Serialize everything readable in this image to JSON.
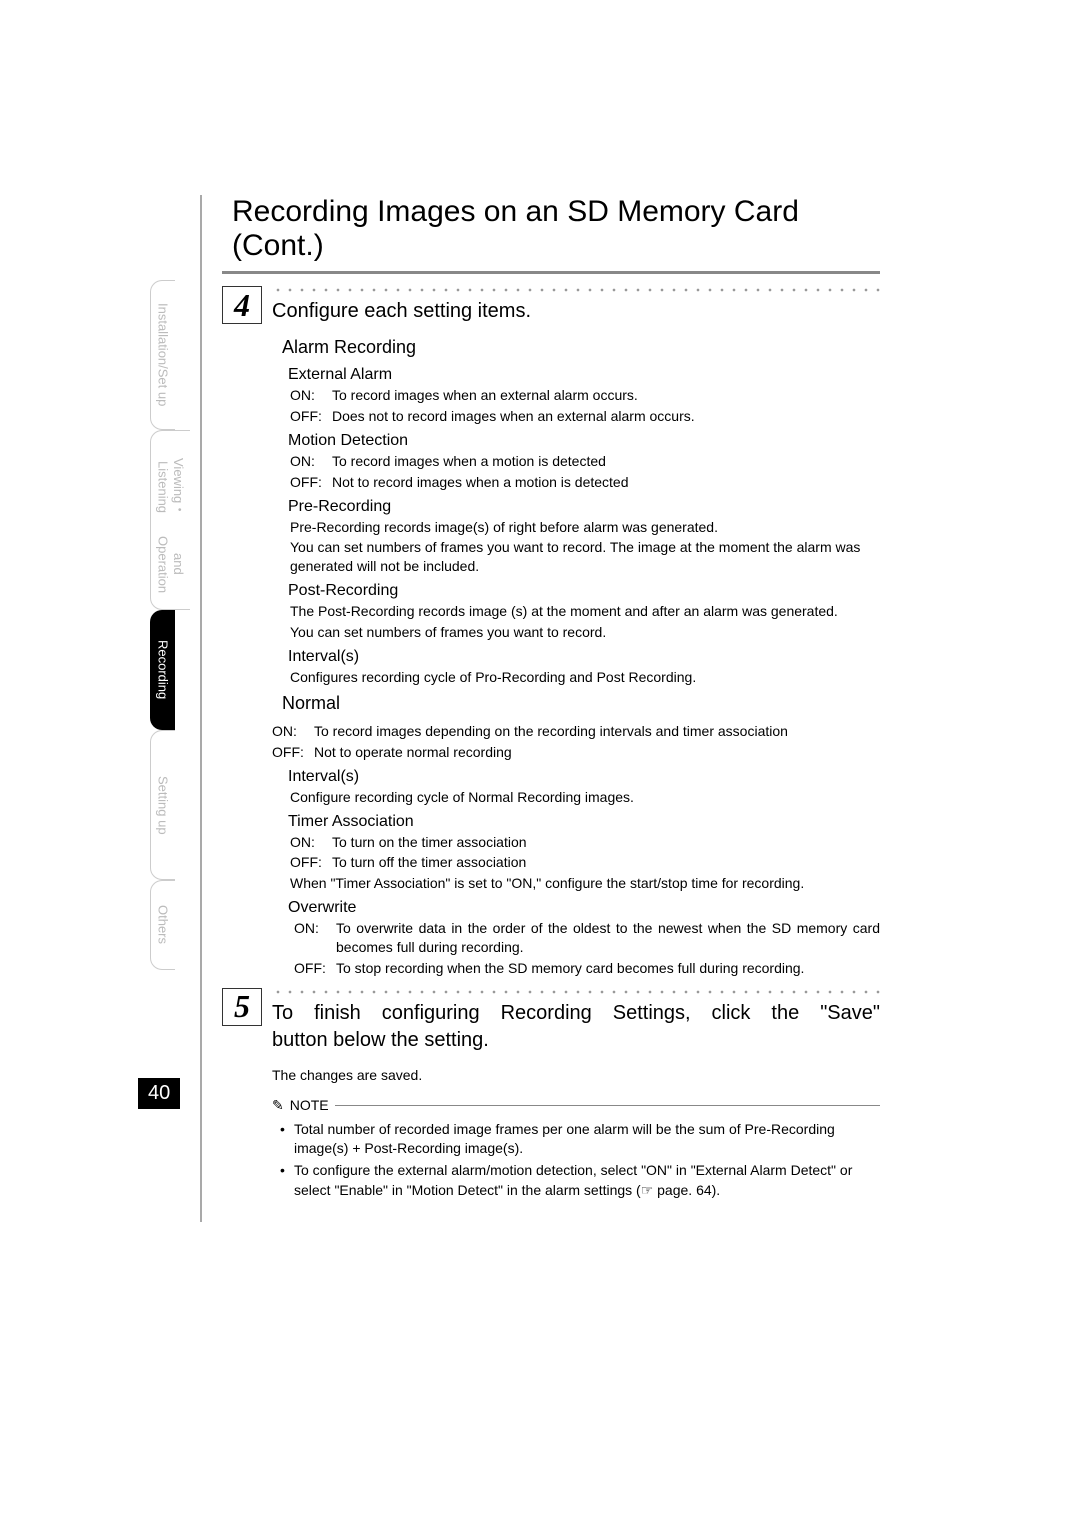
{
  "page_number": "40",
  "page_title": "Recording Images on an SD Memory Card (Cont.)",
  "sidebar": {
    "tab1": "Installation/Set up",
    "tab2_line1": "Viewing・Listening",
    "tab2_line2": "and Operation",
    "tab3": "Recording",
    "tab4": "Setting up",
    "tab5": "Others"
  },
  "step4": {
    "number": "4",
    "title": "Configure each setting items.",
    "alarm_recording": {
      "heading": "Alarm Recording",
      "external_alarm": {
        "label": "External Alarm",
        "on_label": "ON:",
        "on_text": "To record images when an external alarm occurs.",
        "off_label": "OFF:",
        "off_text": "Does not to record images when an external alarm occurs."
      },
      "motion_detection": {
        "label": "Motion Detection",
        "on_label": "ON:",
        "on_text": "To record images when a motion is detected",
        "off_label": "OFF:",
        "off_text": "Not to record images when a motion is detected"
      },
      "pre_recording": {
        "label": "Pre-Recording",
        "line1": "Pre-Recording records image(s) of right before alarm was generated.",
        "line2": "You can set numbers of frames you want to record. The image at the moment the alarm was generated will not be included."
      },
      "post_recording": {
        "label": "Post-Recording",
        "line1": "The Post-Recording records image (s) at the moment and after an alarm was generated.",
        "line2": "You can set numbers of frames you want to record."
      },
      "interval": {
        "label": "Interval(s)",
        "text": "Configures recording cycle of Pro-Recording and Post Recording."
      }
    },
    "normal": {
      "heading": "Normal",
      "on_label": "ON:",
      "on_text": "To record images depending on the recording intervals and timer association",
      "off_label": "OFF:",
      "off_text": "Not to operate normal recording",
      "interval": {
        "label": "Interval(s)",
        "text": "Configure recording cycle of Normal Recording images."
      },
      "timer_assoc": {
        "label": "Timer Association",
        "on_label": "ON:",
        "on_text": "To turn on the timer association",
        "off_label": "OFF:",
        "off_text": "To turn off the timer association",
        "note": "When \"Timer Association\" is set to \"ON,\" configure the start/stop time for recording."
      },
      "overwrite": {
        "label": "Overwrite",
        "on_label": "ON:",
        "on_text": "To overwrite data in the order of the oldest to the newest when the SD memory card becomes full during recording.",
        "off_label": "OFF:",
        "off_text": "To stop recording when the SD memory card becomes full during recording."
      }
    }
  },
  "step5": {
    "number": "5",
    "title_part1": "To finish configuring Recording Settings, click the ",
    "title_save": "\"Save\"",
    "title_part2": " button below the setting.",
    "body": "The changes are saved."
  },
  "note": {
    "label": "NOTE",
    "bullet1": "Total number of recorded image frames per one alarm will be the sum of Pre-Recording image(s) + Post-Recording image(s).",
    "bullet2": "To configure the external alarm/motion detection, select \"ON\" in \"External Alarm Detect\" or select  \"Enable\" in \"Motion Detect\" in the alarm settings (☞ page. 64)."
  }
}
